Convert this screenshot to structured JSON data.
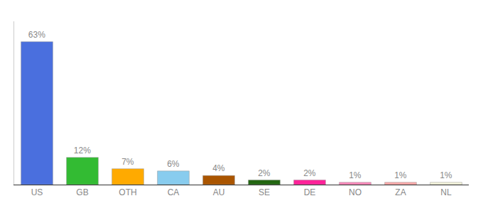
{
  "chart_data": {
    "type": "bar",
    "categories": [
      "US",
      "GB",
      "OTH",
      "CA",
      "AU",
      "SE",
      "DE",
      "NO",
      "ZA",
      "NL"
    ],
    "values": [
      63,
      12,
      7,
      6,
      4,
      2,
      2,
      1,
      1,
      1
    ],
    "value_labels": [
      "63%",
      "12%",
      "7%",
      "6%",
      "4%",
      "2%",
      "2%",
      "1%",
      "1%",
      "1%"
    ],
    "colors": [
      "#4a6fde",
      "#33bb33",
      "#ffaa00",
      "#88ccee",
      "#aa5500",
      "#226611",
      "#ff2299",
      "#ff88bb",
      "#ffaaaa",
      "#f5f5dc"
    ],
    "ylim": [
      0,
      72
    ],
    "yticks": [],
    "grid": false,
    "data_labels": true,
    "tick_labels": "x"
  }
}
